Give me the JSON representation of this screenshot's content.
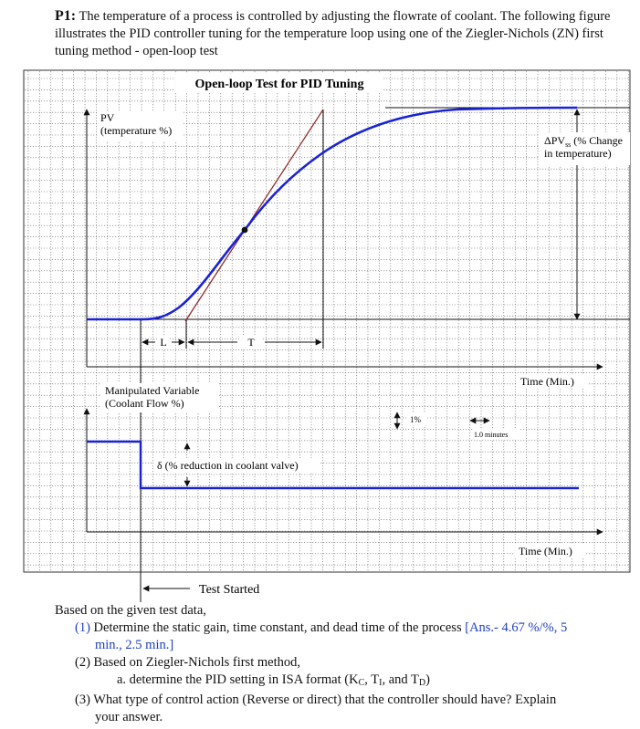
{
  "header": {
    "problem_id": "P1:",
    "text": "The temperature of a process is controlled by adjusting the flowrate of coolant. The following figure illustrates the PID controller tuning for the temperature loop using one of the Ziegler-Nichols (ZN) first tuning method - open-loop test"
  },
  "figure": {
    "title": "Open-loop Test for PID Tuning",
    "pv_label_1": "PV",
    "pv_label_2": "(temperature %)",
    "dpv_label_1": "ΔPV",
    "dpv_label_sub": "ss",
    "dpv_label_2": " (% Change",
    "dpv_label_3": "in temperature)",
    "L_label": "L",
    "T_label": "T",
    "time_label_top": "Time (Min.)",
    "mv_label_1": "Manipulated Variable",
    "mv_label_2": "(Coolant Flow %)",
    "scale_pct": "1%",
    "scale_min": "1.0 minutes",
    "delta_label": "δ (% reduction in coolant valve)",
    "time_label_bottom": "Time (Min.)",
    "test_started": "Test Started",
    "colors": {
      "curve": "#1a22d6",
      "tangent": "#8b2020",
      "grid": "#555555"
    }
  },
  "questions": {
    "intro": "Based on the given test data,",
    "q1_num": "(1)",
    "q1_text": "Determine the static gain, time constant, and dead time of the process ",
    "q1_ans_1": "[Ans.- 4.67 %/%, 5",
    "q1_ans_2": "min., 2.5 min.]",
    "q2_num": "(2)",
    "q2_text": "Based on Ziegler-Nichols first method,",
    "q2a": "a.   determine the PID setting in ISA format (K",
    "q3_num": "(3)",
    "q3_text_1": "What type of control action (Reverse or direct) that the controller should have? Explain",
    "q3_text_2": "your answer."
  }
}
